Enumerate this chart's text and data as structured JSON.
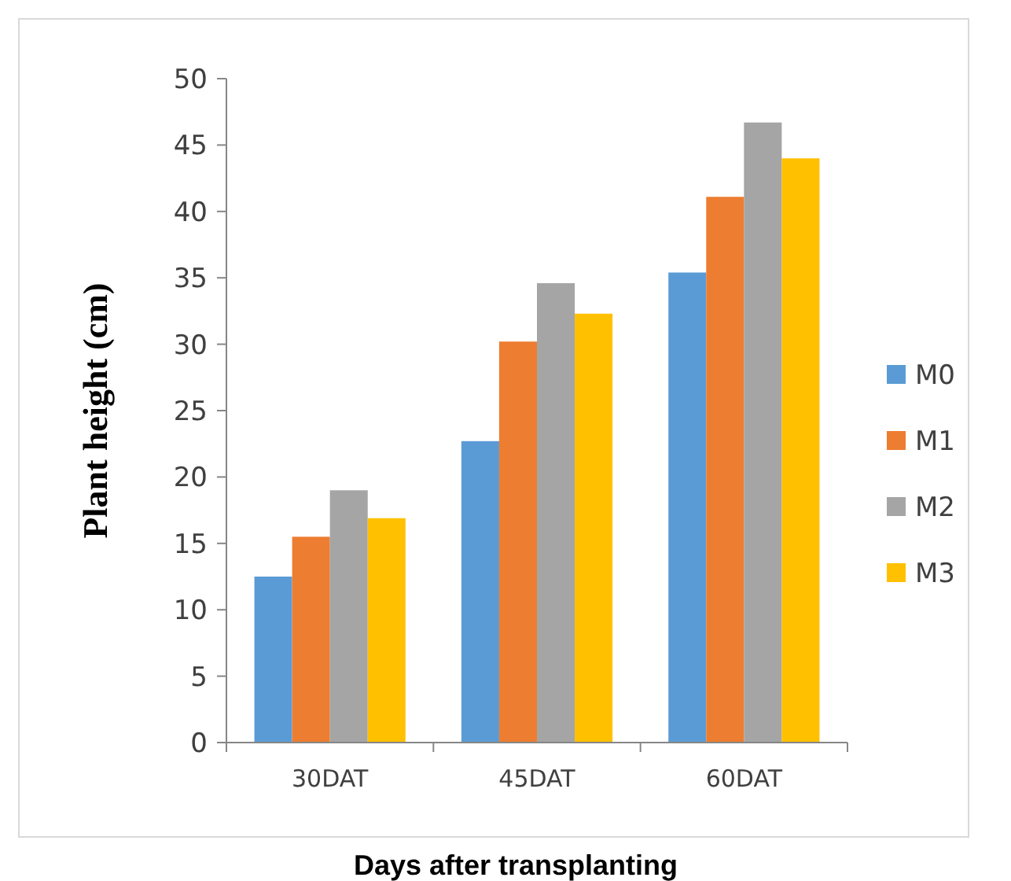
{
  "chart_data": {
    "type": "bar",
    "xlabel": "Days after transplanting",
    "ylabel": "Plant height (cm)",
    "categories": [
      "30DAT",
      "45DAT",
      "60DAT"
    ],
    "series": [
      {
        "name": "M0",
        "color": "#5b9bd5",
        "values": [
          12.5,
          22.7,
          35.4
        ]
      },
      {
        "name": "M1",
        "color": "#ed7d31",
        "values": [
          15.5,
          30.2,
          41.1
        ]
      },
      {
        "name": "M2",
        "color": "#a5a5a5",
        "values": [
          19.0,
          34.6,
          46.7
        ]
      },
      {
        "name": "M3",
        "color": "#ffc000",
        "values": [
          16.9,
          32.3,
          44.0
        ]
      }
    ],
    "ylim": [
      0,
      50
    ],
    "yticks": [
      0,
      5,
      10,
      15,
      20,
      25,
      30,
      35,
      40,
      45,
      50
    ],
    "grid": false,
    "legend": "right"
  }
}
